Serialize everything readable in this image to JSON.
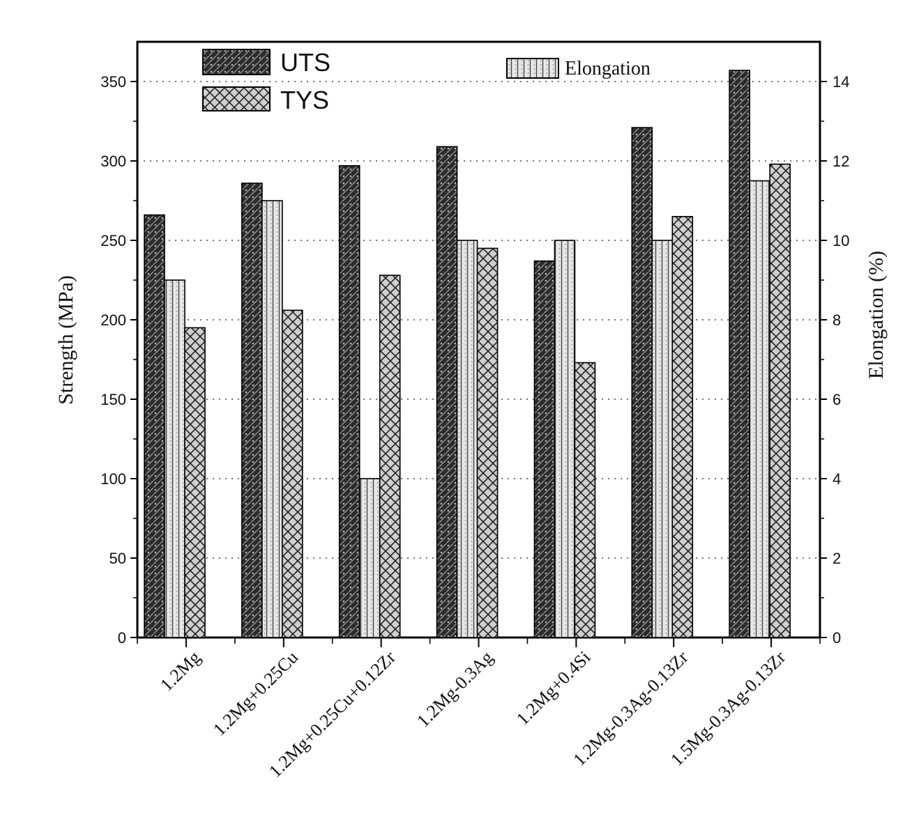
{
  "chart_data": {
    "type": "bar",
    "categories": [
      "1.2Mg",
      "1.2Mg+0.25Cu",
      "1.2Mg+0.25Cu+0.12Zr",
      "1.2Mg-0.3Ag",
      "1.2Mg+0.4Si",
      "1.2Mg-0.3Ag-0.13Zr",
      "1.5Mg-0.3Ag-0.13Zr"
    ],
    "series": [
      {
        "name": "UTS",
        "axis": "left",
        "values": [
          266,
          286,
          297,
          309,
          237,
          321,
          357
        ],
        "color": "#2a2a2a"
      },
      {
        "name": "Elongation",
        "axis": "right",
        "values": [
          9,
          11,
          4,
          10,
          10,
          10,
          11.5
        ],
        "color": "#d8d8d8"
      },
      {
        "name": "TYS",
        "axis": "left",
        "values": [
          195,
          206,
          228,
          245,
          173,
          265,
          298
        ],
        "color": "#bdbdbd"
      }
    ],
    "ylabel": "Strength (MPa)",
    "y2label": "Elongation (%)",
    "ylim": [
      0,
      375
    ],
    "y2lim": [
      0,
      15
    ],
    "yticks": [
      0,
      50,
      100,
      150,
      200,
      250,
      300,
      350
    ],
    "y2ticks": [
      0,
      2,
      4,
      6,
      8,
      10,
      12,
      14
    ],
    "grid": "dotted horizontal lines at 50 MPa intervals",
    "legend": [
      {
        "label": "UTS",
        "position": "top-left"
      },
      {
        "label": "TYS",
        "position": "top-left"
      },
      {
        "label": "Elongation",
        "position": "top-center"
      }
    ]
  }
}
